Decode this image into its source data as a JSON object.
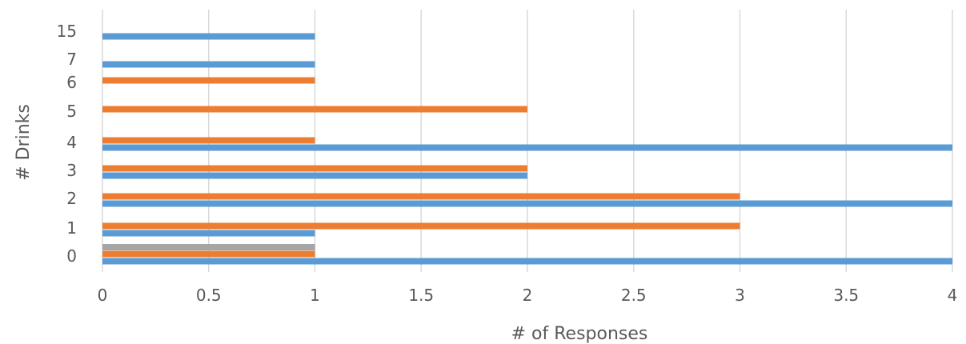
{
  "chart_data": {
    "type": "bar",
    "orientation": "horizontal",
    "categories": [
      "0",
      "1",
      "2",
      "3",
      "4",
      "5",
      "6",
      "7",
      "15"
    ],
    "series": [
      {
        "color": "#5b9bd5",
        "values": [
          4,
          1,
          4,
          2,
          4,
          0,
          0,
          1,
          1
        ]
      },
      {
        "color": "#ed7d31",
        "values": [
          1,
          3,
          3,
          2,
          1,
          2,
          1,
          0,
          0
        ]
      },
      {
        "color": "#a5a5a5",
        "values": [
          1,
          0,
          0,
          0,
          0,
          0,
          0,
          0,
          0
        ]
      }
    ],
    "xlabel": "# of Responses",
    "ylabel": "# Drinks",
    "xlim": [
      0,
      4
    ],
    "xticks": [
      "0",
      "0.5",
      "1",
      "1.5",
      "2",
      "2.5",
      "3",
      "3.5",
      "4"
    ],
    "grid": "vertical",
    "legend": "none"
  }
}
